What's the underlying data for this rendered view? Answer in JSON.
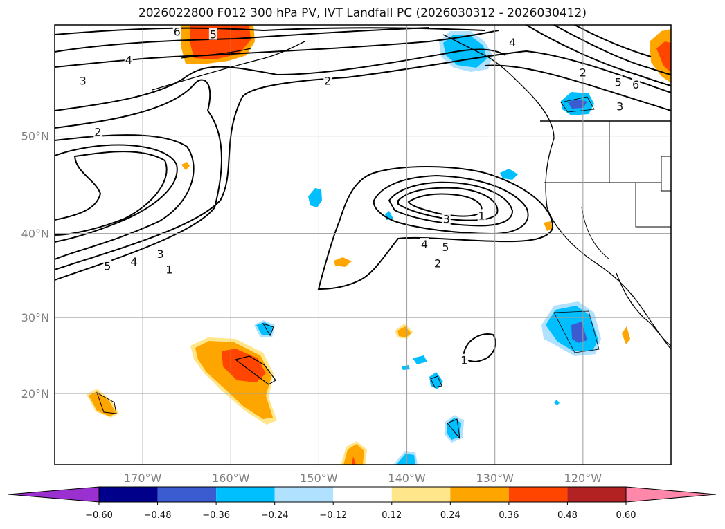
{
  "title": "2026022800 F012 300 hPa PV, IVT Landfall PC (2026030312 - 2026030412)",
  "lat_ticks": [
    {
      "label": "50°N",
      "lat": 50
    },
    {
      "label": "40°N",
      "lat": 40
    },
    {
      "label": "30°N",
      "lat": 30
    },
    {
      "label": "20°N",
      "lat": 20
    }
  ],
  "lon_ticks": [
    {
      "label": "170°W",
      "lon": -170
    },
    {
      "label": "160°W",
      "lon": -160
    },
    {
      "label": "150°W",
      "lon": -150
    },
    {
      "label": "140°W",
      "lon": -140
    },
    {
      "label": "130°W",
      "lon": -130
    },
    {
      "label": "120°W",
      "lon": -120
    }
  ],
  "contour_labels": [
    {
      "text": "6",
      "lon": -166.1,
      "lat": 58.8
    },
    {
      "text": "5",
      "lon": -162.0,
      "lat": 58.6
    },
    {
      "text": "4",
      "lon": -171.6,
      "lat": 56.6
    },
    {
      "text": "3",
      "lon": -176.8,
      "lat": 54.9
    },
    {
      "text": "2",
      "lon": -149.0,
      "lat": 54.9
    },
    {
      "text": "2",
      "lon": -175.1,
      "lat": 50.4
    },
    {
      "text": "5",
      "lon": -174.0,
      "lat": 36.3
    },
    {
      "text": "4",
      "lon": -171.0,
      "lat": 36.8
    },
    {
      "text": "3",
      "lon": -168.0,
      "lat": 37.7
    },
    {
      "text": "1",
      "lon": -167.0,
      "lat": 35.9
    },
    {
      "text": "4",
      "lon": -128.0,
      "lat": 58.0
    },
    {
      "text": "2",
      "lon": -120.0,
      "lat": 55.6
    },
    {
      "text": "5",
      "lon": -116.0,
      "lat": 54.8
    },
    {
      "text": "3",
      "lon": -115.8,
      "lat": 52.7
    },
    {
      "text": "6",
      "lon": -114.0,
      "lat": 54.6
    },
    {
      "text": "3",
      "lon": -135.5,
      "lat": 41.6
    },
    {
      "text": "1",
      "lon": -131.5,
      "lat": 42.0
    },
    {
      "text": "4",
      "lon": -138.0,
      "lat": 38.8
    },
    {
      "text": "5",
      "lon": -135.6,
      "lat": 38.5
    },
    {
      "text": "2",
      "lon": -136.5,
      "lat": 36.6
    },
    {
      "text": "1",
      "lon": -133.5,
      "lat": 24.5
    }
  ],
  "colorbar": {
    "levels": [
      "−0.60",
      "−0.48",
      "−0.36",
      "−0.24",
      "−0.12",
      "0.12",
      "0.24",
      "0.36",
      "0.48",
      "0.60"
    ],
    "colors": [
      "#9b30d0",
      "#00008b",
      "#3b5bd0",
      "#00bfff",
      "#b0e2ff",
      "#ffffff",
      "#ffe68a",
      "#ffa500",
      "#ff4500",
      "#b22222",
      "#ff88aa"
    ]
  }
}
